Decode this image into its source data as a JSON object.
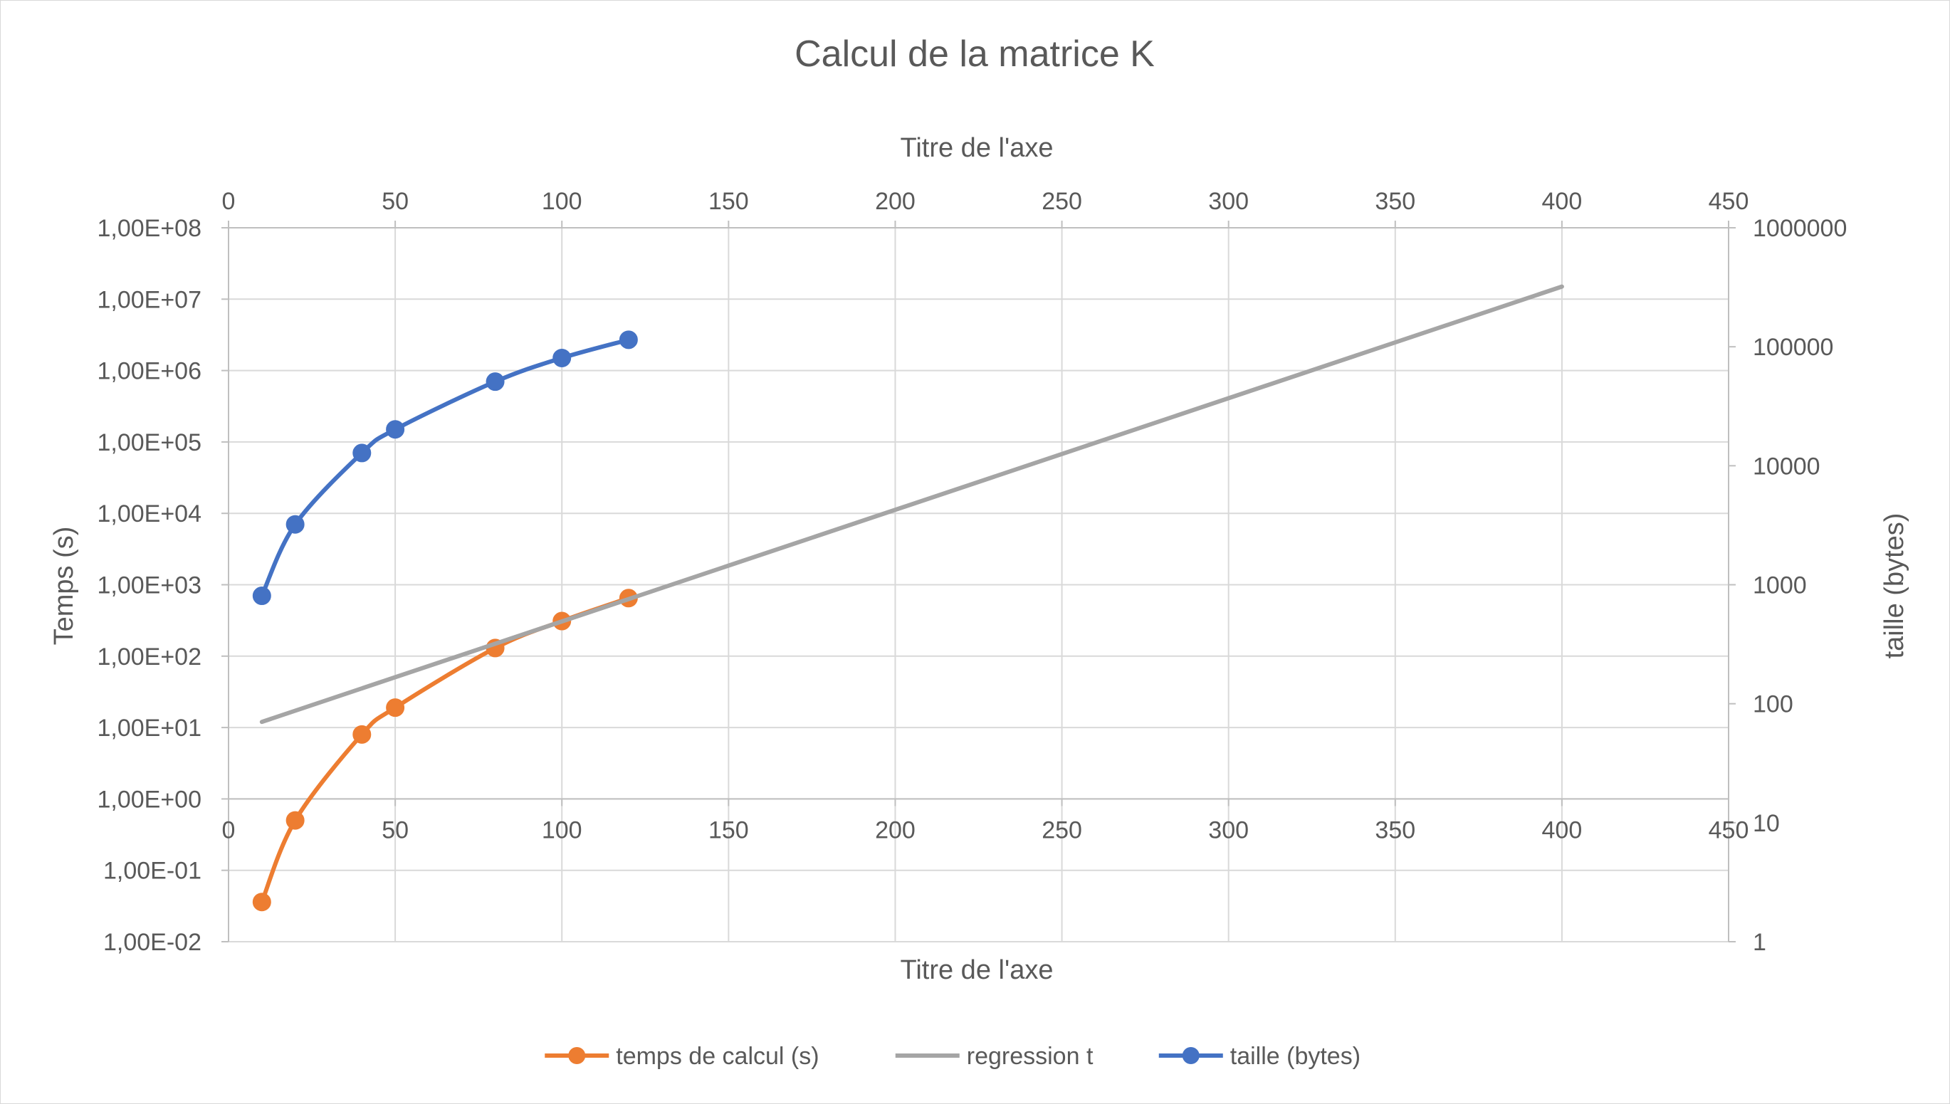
{
  "chart_data": {
    "type": "line",
    "title": "Calcul de la matrice K",
    "x_axis_title_top": "Titre de l'axe",
    "x_axis_title_bottom": "Titre de l'axe",
    "ylabel_left": "Temps (s)",
    "ylabel_right": "taille (bytes)",
    "xlim": [
      0,
      450
    ],
    "x_ticks": [
      0,
      50,
      100,
      150,
      200,
      250,
      300,
      350,
      400,
      450
    ],
    "y_left": {
      "scale": "log",
      "ylim": [
        0.01,
        100000000
      ],
      "tick_labels": [
        "1,00E-02",
        "1,00E-01",
        "1,00E+00",
        "1,00E+01",
        "1,00E+02",
        "1,00E+03",
        "1,00E+04",
        "1,00E+05",
        "1,00E+06",
        "1,00E+07",
        "1,00E+08"
      ]
    },
    "y_right": {
      "scale": "log",
      "ylim": [
        1,
        1000000
      ],
      "tick_labels": [
        "1",
        "10",
        "100",
        "1000",
        "10000",
        "100000",
        "1000000"
      ]
    },
    "grid": true,
    "legend_position": "bottom",
    "series": [
      {
        "name": "temps de calcul (s)",
        "axis": "left",
        "color": "#ED7D31",
        "marker": "circle",
        "smooth": true,
        "x": [
          10,
          20,
          40,
          50,
          80,
          100,
          120
        ],
        "y": [
          0.036,
          0.5,
          8.0,
          19.0,
          130,
          310,
          650
        ]
      },
      {
        "name": "regression t",
        "axis": "left",
        "color": "#A5A5A5",
        "marker": "none",
        "smooth": false,
        "x": [
          10,
          400
        ],
        "y": [
          12,
          15000000
        ]
      },
      {
        "name": "taille (bytes)",
        "axis": "left",
        "color": "#4472C4",
        "marker": "circle",
        "smooth": true,
        "x": [
          10,
          20,
          40,
          50,
          80,
          100,
          120
        ],
        "y": [
          700,
          7000,
          70000,
          150000,
          700000,
          1500000,
          2700000
        ]
      }
    ]
  }
}
